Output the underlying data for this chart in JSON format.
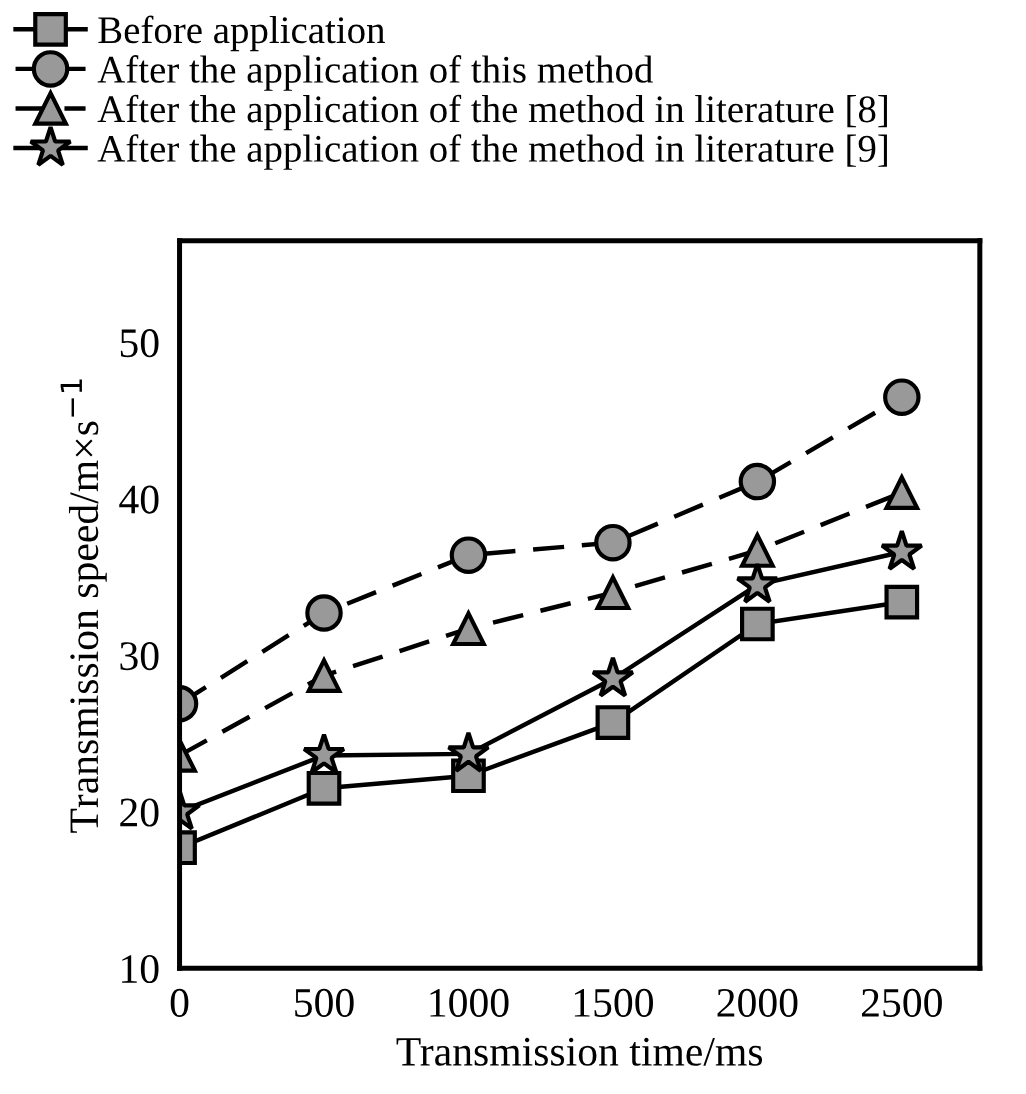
{
  "chart_data": {
    "type": "line",
    "xlabel": "Transmission time/ms",
    "ylabel": "Transmission speed/m×s$^{−1}$",
    "x": [
      0,
      500,
      1000,
      1500,
      2000,
      2500
    ],
    "series": [
      {
        "name": "Before application",
        "color": "#999999",
        "marker": "square",
        "line_style": "solid",
        "values": [
          17.7,
          21.5,
          22.3,
          25.7,
          32.0,
          33.4
        ]
      },
      {
        "name": "After the application of this method",
        "color": "#999999",
        "marker": "circle",
        "line_style": "dashed",
        "values": [
          26.9,
          32.7,
          36.4,
          37.2,
          41.1,
          46.5
        ]
      },
      {
        "name": "After the application of the method in literature [8]",
        "color": "#999999",
        "marker": "triangle",
        "line_style": "dashed",
        "values": [
          23.6,
          28.7,
          31.7,
          34.0,
          36.7,
          40.4
        ]
      },
      {
        "name": "After the application of the method in literature [9]",
        "color": "#999999",
        "marker": "star",
        "line_style": "solid",
        "values": [
          20.0,
          23.6,
          23.7,
          28.5,
          34.5,
          36.6
        ]
      }
    ],
    "xlim": [
      0,
      2770
    ],
    "xticks": [
      0,
      500,
      1000,
      1500,
      2000,
      2500
    ],
    "ylim": [
      10,
      56.5
    ],
    "yticks": [
      10,
      20,
      30,
      40,
      50
    ],
    "grid": false,
    "legend": "top left"
  }
}
